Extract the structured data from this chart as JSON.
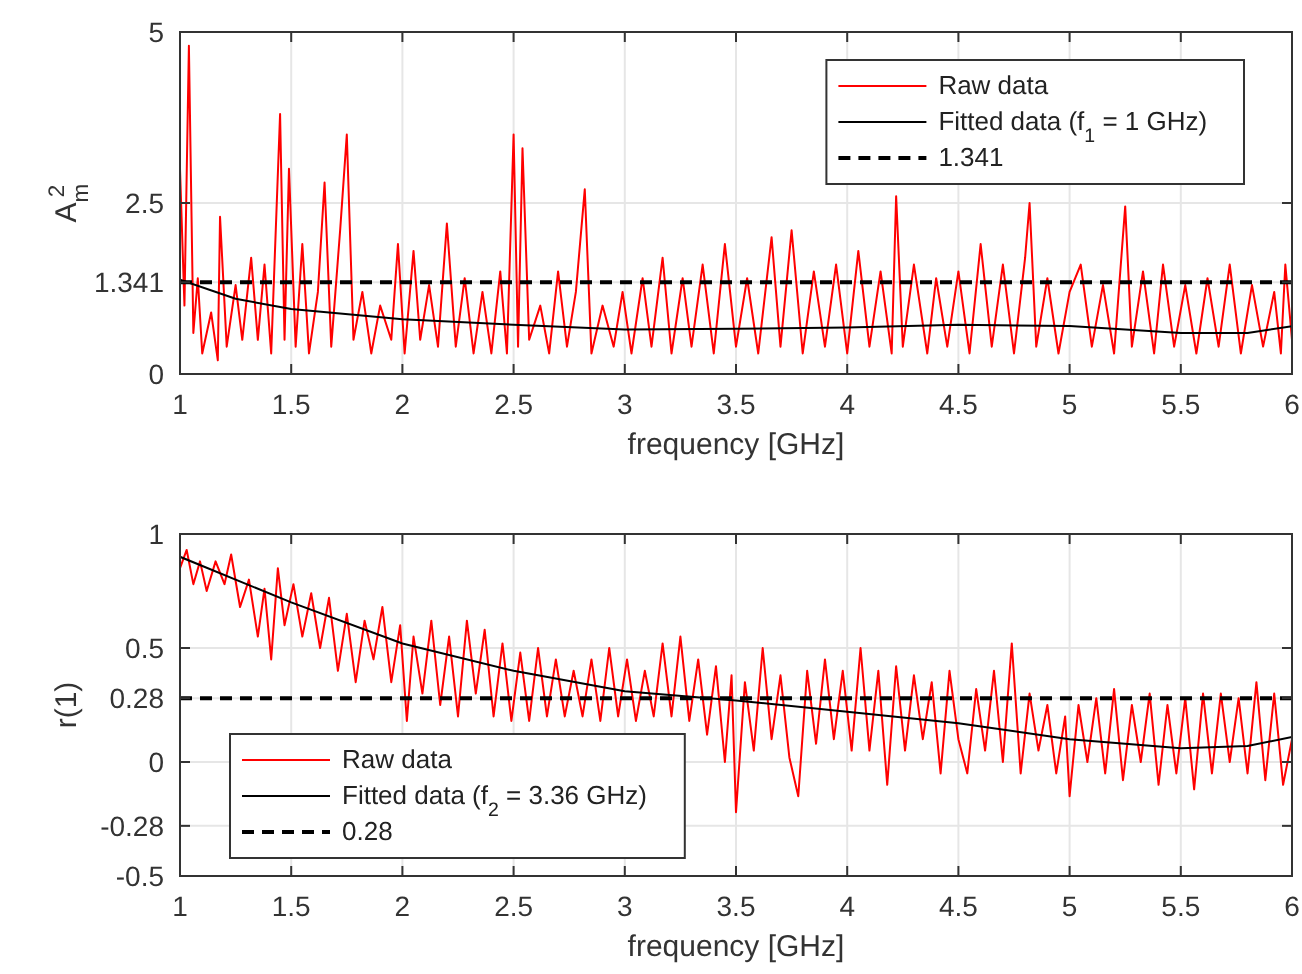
{
  "chart_data": [
    {
      "type": "line",
      "xlabel": "frequency [GHz]",
      "ylabel": "A$_{m}$$^{2}$",
      "xlim": [
        1,
        6
      ],
      "ylim": [
        0,
        5
      ],
      "xticks": [
        1,
        1.5,
        2,
        2.5,
        3,
        3.5,
        4,
        4.5,
        5,
        5.5,
        6
      ],
      "yticks": [
        0,
        1.341,
        2.5,
        5
      ],
      "grid": true,
      "legend": "top right",
      "series": [
        {
          "name": "Raw data",
          "color": "#ff0000",
          "x": [
            1.0,
            1.02,
            1.04,
            1.06,
            1.08,
            1.1,
            1.14,
            1.17,
            1.18,
            1.21,
            1.25,
            1.28,
            1.32,
            1.35,
            1.38,
            1.41,
            1.45,
            1.47,
            1.49,
            1.52,
            1.55,
            1.58,
            1.62,
            1.65,
            1.68,
            1.72,
            1.75,
            1.78,
            1.82,
            1.86,
            1.9,
            1.95,
            1.98,
            2.01,
            2.05,
            2.08,
            2.12,
            2.16,
            2.2,
            2.24,
            2.28,
            2.32,
            2.36,
            2.4,
            2.44,
            2.47,
            2.5,
            2.52,
            2.54,
            2.57,
            2.62,
            2.66,
            2.7,
            2.74,
            2.78,
            2.82,
            2.85,
            2.9,
            2.95,
            2.99,
            3.03,
            3.08,
            3.12,
            3.17,
            3.21,
            3.26,
            3.3,
            3.35,
            3.4,
            3.45,
            3.5,
            3.55,
            3.6,
            3.66,
            3.7,
            3.75,
            3.8,
            3.85,
            3.9,
            3.95,
            4.0,
            4.05,
            4.1,
            4.15,
            4.2,
            4.22,
            4.25,
            4.3,
            4.36,
            4.4,
            4.45,
            4.5,
            4.55,
            4.6,
            4.65,
            4.7,
            4.75,
            4.8,
            4.82,
            4.85,
            4.9,
            4.95,
            5.0,
            5.05,
            5.1,
            5.15,
            5.2,
            5.25,
            5.28,
            5.33,
            5.38,
            5.42,
            5.47,
            5.52,
            5.57,
            5.62,
            5.67,
            5.72,
            5.77,
            5.82,
            5.87,
            5.92,
            5.95,
            5.97,
            6.0
          ],
          "values": [
            3.0,
            1.0,
            4.8,
            0.6,
            1.4,
            0.3,
            0.9,
            0.2,
            2.3,
            0.4,
            1.3,
            0.5,
            1.7,
            0.5,
            1.6,
            0.3,
            3.8,
            0.5,
            3.0,
            0.4,
            1.9,
            0.3,
            1.2,
            2.8,
            0.4,
            2.1,
            3.5,
            0.5,
            1.2,
            0.3,
            1.0,
            0.5,
            1.9,
            0.3,
            1.8,
            0.5,
            1.3,
            0.4,
            2.2,
            0.4,
            1.4,
            0.3,
            1.2,
            0.3,
            1.5,
            0.3,
            3.5,
            0.4,
            3.3,
            0.5,
            1.0,
            0.3,
            1.5,
            0.4,
            1.2,
            2.7,
            0.3,
            1.0,
            0.4,
            1.2,
            0.3,
            1.4,
            0.4,
            1.7,
            0.3,
            1.4,
            0.4,
            1.6,
            0.3,
            1.9,
            0.4,
            1.4,
            0.3,
            2.0,
            0.4,
            2.1,
            0.3,
            1.5,
            0.4,
            1.6,
            0.3,
            1.8,
            0.4,
            1.5,
            0.3,
            2.6,
            0.4,
            1.6,
            0.3,
            1.4,
            0.4,
            1.5,
            0.3,
            1.9,
            0.4,
            1.6,
            0.3,
            1.7,
            2.5,
            0.4,
            1.4,
            0.3,
            1.2,
            1.6,
            0.4,
            1.3,
            0.3,
            2.45,
            0.4,
            1.5,
            0.3,
            1.6,
            0.4,
            1.3,
            0.3,
            1.4,
            0.4,
            1.6,
            0.3,
            1.3,
            0.4,
            1.2,
            0.3,
            1.6,
            0.5
          ]
        },
        {
          "name": "Fitted data (f$_{1}$ = 1 GHz)",
          "color": "#000000",
          "x": [
            1.0,
            1.25,
            1.5,
            2.0,
            2.5,
            3.0,
            3.5,
            4.0,
            4.5,
            5.0,
            5.5,
            5.8,
            6.0
          ],
          "values": [
            1.38,
            1.1,
            0.95,
            0.8,
            0.72,
            0.65,
            0.66,
            0.68,
            0.72,
            0.7,
            0.6,
            0.6,
            0.7
          ]
        }
      ],
      "ref_lines": [
        {
          "axis": "y",
          "value": 1.341,
          "label": "1.341",
          "color": "#000000",
          "line_style": "dashed"
        }
      ]
    },
    {
      "type": "line",
      "xlabel": "frequency [GHz]",
      "ylabel": "r(1)",
      "xlim": [
        1,
        6
      ],
      "ylim": [
        -0.5,
        1
      ],
      "xticks": [
        1,
        1.5,
        2,
        2.5,
        3,
        3.5,
        4,
        4.5,
        5,
        5.5,
        6
      ],
      "yticks": [
        -0.5,
        -0.28,
        0,
        0.28,
        0.5,
        1
      ],
      "grid": true,
      "legend": "bottom left",
      "series": [
        {
          "name": "Raw data",
          "color": "#ff0000",
          "x": [
            1.0,
            1.03,
            1.06,
            1.09,
            1.12,
            1.16,
            1.2,
            1.23,
            1.27,
            1.31,
            1.35,
            1.38,
            1.41,
            1.44,
            1.47,
            1.51,
            1.55,
            1.59,
            1.63,
            1.67,
            1.71,
            1.75,
            1.79,
            1.83,
            1.87,
            1.91,
            1.95,
            1.99,
            2.02,
            2.05,
            2.09,
            2.13,
            2.17,
            2.21,
            2.25,
            2.29,
            2.33,
            2.37,
            2.41,
            2.45,
            2.49,
            2.53,
            2.57,
            2.61,
            2.65,
            2.69,
            2.73,
            2.77,
            2.81,
            2.85,
            2.89,
            2.93,
            2.97,
            3.01,
            3.05,
            3.09,
            3.13,
            3.17,
            3.21,
            3.25,
            3.29,
            3.33,
            3.37,
            3.41,
            3.45,
            3.48,
            3.5,
            3.54,
            3.58,
            3.62,
            3.66,
            3.7,
            3.74,
            3.78,
            3.82,
            3.86,
            3.9,
            3.94,
            3.98,
            4.02,
            4.06,
            4.1,
            4.14,
            4.18,
            4.22,
            4.26,
            4.3,
            4.34,
            4.38,
            4.42,
            4.46,
            4.5,
            4.54,
            4.58,
            4.62,
            4.66,
            4.7,
            4.74,
            4.78,
            4.82,
            4.86,
            4.9,
            4.94,
            4.98,
            5.0,
            5.04,
            5.08,
            5.12,
            5.16,
            5.2,
            5.24,
            5.28,
            5.32,
            5.36,
            5.4,
            5.44,
            5.48,
            5.52,
            5.56,
            5.6,
            5.64,
            5.68,
            5.72,
            5.76,
            5.8,
            5.84,
            5.88,
            5.92,
            5.96,
            6.0
          ],
          "values": [
            0.85,
            0.93,
            0.78,
            0.88,
            0.75,
            0.88,
            0.78,
            0.91,
            0.68,
            0.8,
            0.55,
            0.76,
            0.45,
            0.85,
            0.6,
            0.78,
            0.55,
            0.74,
            0.5,
            0.72,
            0.4,
            0.65,
            0.35,
            0.62,
            0.45,
            0.68,
            0.35,
            0.6,
            0.18,
            0.55,
            0.3,
            0.62,
            0.25,
            0.55,
            0.2,
            0.62,
            0.3,
            0.58,
            0.2,
            0.52,
            0.18,
            0.48,
            0.18,
            0.5,
            0.2,
            0.45,
            0.2,
            0.4,
            0.2,
            0.45,
            0.18,
            0.5,
            0.2,
            0.45,
            0.18,
            0.4,
            0.2,
            0.52,
            0.2,
            0.55,
            0.18,
            0.45,
            0.12,
            0.42,
            0.0,
            0.38,
            -0.22,
            0.35,
            0.05,
            0.5,
            0.1,
            0.38,
            0.02,
            -0.15,
            0.4,
            0.08,
            0.45,
            0.1,
            0.4,
            0.05,
            0.5,
            0.05,
            0.4,
            -0.1,
            0.42,
            0.05,
            0.38,
            0.1,
            0.35,
            -0.05,
            0.4,
            0.1,
            -0.05,
            0.32,
            0.05,
            0.4,
            0.0,
            0.52,
            -0.05,
            0.3,
            0.05,
            0.25,
            -0.05,
            0.2,
            -0.15,
            0.25,
            0.0,
            0.28,
            -0.05,
            0.32,
            -0.08,
            0.25,
            0.0,
            0.3,
            -0.1,
            0.25,
            -0.05,
            0.28,
            -0.12,
            0.3,
            -0.05,
            0.3,
            0.0,
            0.28,
            -0.05,
            0.35,
            -0.08,
            0.3,
            -0.1,
            0.1
          ]
        },
        {
          "name": "Fitted data (f$_{2}$ = 3.36 GHz)",
          "color": "#000000",
          "x": [
            1.0,
            1.5,
            2.0,
            2.5,
            3.0,
            3.5,
            4.0,
            4.5,
            5.0,
            5.5,
            5.8,
            6.0
          ],
          "values": [
            0.9,
            0.7,
            0.52,
            0.4,
            0.31,
            0.27,
            0.22,
            0.17,
            0.1,
            0.06,
            0.07,
            0.11
          ]
        }
      ],
      "ref_lines": [
        {
          "axis": "y",
          "value": 0.28,
          "label": "0.28",
          "color": "#000000",
          "line_style": "dashed"
        }
      ]
    }
  ]
}
